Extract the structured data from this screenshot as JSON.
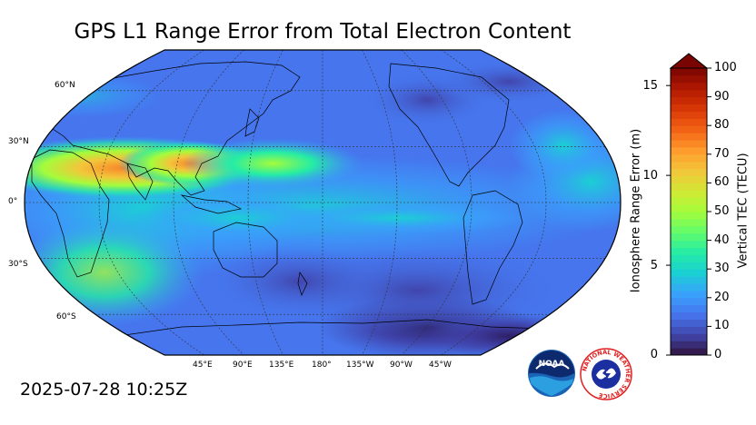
{
  "title": "GPS L1 Range Error from Total Electron Content",
  "timestamp": "2025-07-28 10:25Z",
  "map": {
    "projection": "robinson",
    "central_longitude": 180,
    "lat_labels": [
      "60°N",
      "30°N",
      "0°",
      "30°S",
      "60°S"
    ],
    "lon_labels": [
      "45°E",
      "90°E",
      "135°E",
      "180°",
      "135°W",
      "90°W",
      "45°W"
    ],
    "regions": {
      "equatorial_anomaly_max_tecu": 70,
      "background_tecu": 25,
      "southern_pacific_min_tecu": 5
    }
  },
  "colorbar": {
    "left_label": "Ionosphere Range Error (m)",
    "right_label": "Vertical TEC (TECU)",
    "left_ticks": [
      "0",
      "5",
      "10",
      "15"
    ],
    "right_ticks": [
      "0",
      "10",
      "20",
      "30",
      "40",
      "50",
      "60",
      "70",
      "80",
      "90",
      "100"
    ],
    "range_tecu": [
      0,
      100
    ],
    "extend": "max",
    "colors": [
      "#30123b",
      "#4145ab",
      "#4675ed",
      "#39a2fc",
      "#1bcfd4",
      "#24eca6",
      "#61fc6c",
      "#a4fc3b",
      "#d1e834",
      "#f3c63a",
      "#fe9b2d",
      "#f36315",
      "#d93806",
      "#b11901",
      "#7a0402"
    ]
  },
  "logos": {
    "noaa": "NOAA",
    "nws": "NATIONAL WEATHER SERVICE"
  }
}
